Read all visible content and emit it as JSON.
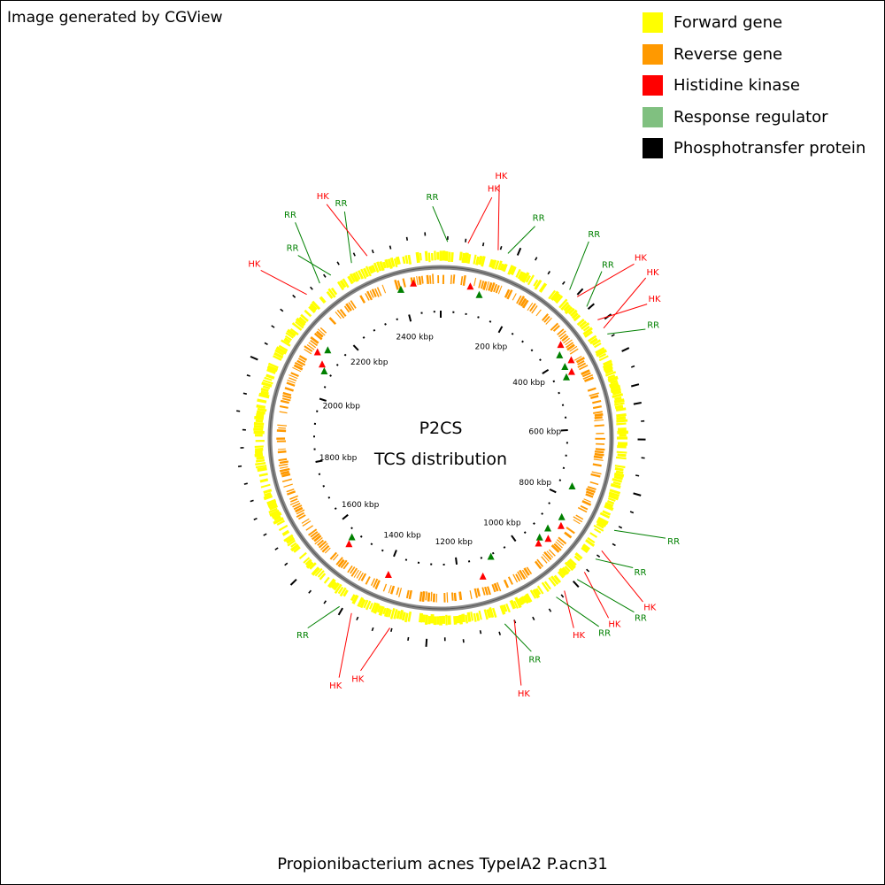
{
  "credit": "Image generated by CGView",
  "footer": "Propionibacterium acnes TypeIA2 P.acn31",
  "center": {
    "line1": "P2CS",
    "line2": "TCS distribution"
  },
  "colors": {
    "forward": "#ffff00",
    "reverse": "#ff9900",
    "hk": "#ff0000",
    "rr": "#008000",
    "rr_legend": "#80c080",
    "phospho": "#000000",
    "backbone": "#888888"
  },
  "legend": [
    {
      "label": "Forward gene",
      "color": "#ffff00"
    },
    {
      "label": "Reverse gene",
      "color": "#ff9900"
    },
    {
      "label": "Histidine kinase",
      "color": "#ff0000"
    },
    {
      "label": "Response regulator",
      "color": "#80c080"
    },
    {
      "label": "Phosphotransfer protein",
      "color": "#000000"
    }
  ],
  "genome": {
    "length_kbp": 2500,
    "tick_labels": [
      "200 kbp",
      "400 kbp",
      "600 kbp",
      "800 kbp",
      "1000 kbp",
      "1200 kbp",
      "1400 kbp",
      "1600 kbp",
      "1800 kbp",
      "2000 kbp",
      "2200 kbp",
      "2400 kbp"
    ]
  },
  "callouts": [
    {
      "label": "RR",
      "type": "rr",
      "angle": 2
    },
    {
      "label": "HK",
      "type": "hk",
      "angle": 8
    },
    {
      "label": "HK",
      "type": "hk",
      "angle": 17
    },
    {
      "label": "RR",
      "type": "rr",
      "angle": 20
    },
    {
      "label": "RR",
      "type": "rr",
      "angle": 41
    },
    {
      "label": "HK",
      "type": "hk",
      "angle": 44
    },
    {
      "label": "RR",
      "type": "rr",
      "angle": 48
    },
    {
      "label": "HK",
      "type": "hk",
      "angle": 53
    },
    {
      "label": "HK",
      "type": "hk",
      "angle": 56
    },
    {
      "label": "RR",
      "type": "rr",
      "angle": 58
    },
    {
      "label": "RR",
      "type": "rr",
      "angle": 118
    },
    {
      "label": "HK",
      "type": "hk",
      "angle": 125
    },
    {
      "label": "RR",
      "type": "rr",
      "angle": 128
    },
    {
      "label": "HK",
      "type": "hk",
      "angle": 133
    },
    {
      "label": "RR",
      "type": "rr",
      "angle": 136
    },
    {
      "label": "HK",
      "type": "hk",
      "angle": 141
    },
    {
      "label": "RR",
      "type": "rr",
      "angle": 144
    },
    {
      "label": "HK",
      "type": "hk",
      "angle": 158
    },
    {
      "label": "RR",
      "type": "rr",
      "angle": 161
    },
    {
      "label": "HK",
      "type": "hk",
      "angle": 195
    },
    {
      "label": "HK",
      "type": "hk",
      "angle": 207
    },
    {
      "label": "RR",
      "type": "rr",
      "angle": 211
    },
    {
      "label": "HK",
      "type": "hk",
      "angle": 317
    },
    {
      "label": "RR",
      "type": "rr",
      "angle": 322
    },
    {
      "label": "RR",
      "type": "rr",
      "angle": 326
    },
    {
      "label": "RR",
      "type": "rr",
      "angle": 333
    },
    {
      "label": "HK",
      "type": "hk",
      "angle": 338
    }
  ],
  "markers": [
    {
      "type": "rr",
      "angle": 345,
      "r": 174
    },
    {
      "type": "hk",
      "angle": 350,
      "r": 178
    },
    {
      "type": "hk",
      "angle": 11,
      "r": 175
    },
    {
      "type": "rr",
      "angle": 15,
      "r": 168
    },
    {
      "type": "hk",
      "angle": 305,
      "r": 170
    },
    {
      "type": "rr",
      "angle": 308,
      "r": 162
    },
    {
      "type": "hk",
      "angle": 302,
      "r": 158
    },
    {
      "type": "rr",
      "angle": 300,
      "r": 152
    },
    {
      "type": "hk",
      "angle": 52,
      "r": 172
    },
    {
      "type": "rr",
      "angle": 55,
      "r": 164
    },
    {
      "type": "hk",
      "angle": 59,
      "r": 172
    },
    {
      "type": "rr",
      "angle": 60,
      "r": 162
    },
    {
      "type": "hk",
      "angle": 63,
      "r": 166
    },
    {
      "type": "rr",
      "angle": 64,
      "r": 158
    },
    {
      "type": "rr",
      "angle": 110,
      "r": 158
    },
    {
      "type": "rr",
      "angle": 123,
      "r": 163
    },
    {
      "type": "hk",
      "angle": 126,
      "r": 168
    },
    {
      "type": "rr",
      "angle": 130,
      "r": 158
    },
    {
      "type": "hk",
      "angle": 133,
      "r": 166
    },
    {
      "type": "rr",
      "angle": 135,
      "r": 158
    },
    {
      "type": "hk",
      "angle": 137,
      "r": 162
    },
    {
      "type": "rr",
      "angle": 157,
      "r": 145
    },
    {
      "type": "hk",
      "angle": 163,
      "r": 163
    },
    {
      "type": "hk",
      "angle": 201,
      "r": 165
    },
    {
      "type": "hk",
      "angle": 221,
      "r": 158
    },
    {
      "type": "rr",
      "angle": 222,
      "r": 150
    }
  ]
}
